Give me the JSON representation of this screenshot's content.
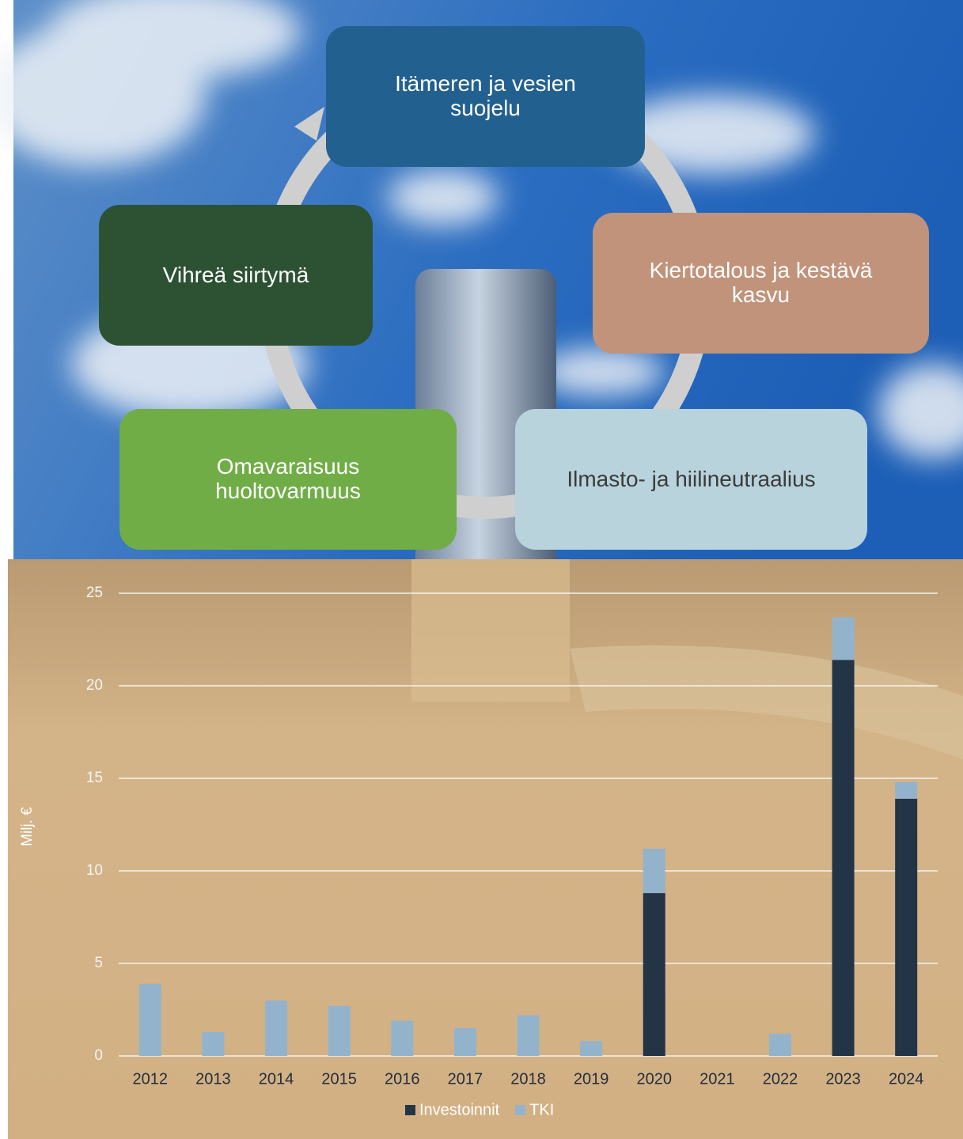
{
  "diagram": {
    "nodes": [
      {
        "label": "Itämeren ja vesien suojelu"
      },
      {
        "label": "Kiertotalous ja kestävä kasvu"
      },
      {
        "label": "Ilmasto- ja hiilineutraalius"
      },
      {
        "label": "Omavaraisuus huoltovarmuus"
      },
      {
        "label": "Vihreä siirtymä"
      }
    ]
  },
  "chart_data": {
    "type": "stacked-bar",
    "y_label": "Milj. €",
    "categories": [
      "2012",
      "2013",
      "2014",
      "2015",
      "2016",
      "2017",
      "2018",
      "2019",
      "2020",
      "2021",
      "2022",
      "2023",
      "2024"
    ],
    "series": [
      {
        "name": "Investoinnit",
        "color": "#243447",
        "values": [
          0,
          0,
          0,
          0,
          0,
          0,
          0,
          0,
          8.8,
          0,
          0,
          21.4,
          13.9
        ]
      },
      {
        "name": "TKI",
        "color": "#93b3cc",
        "values": [
          3.9,
          1.3,
          3.0,
          2.7,
          1.9,
          1.5,
          2.2,
          0.8,
          2.4,
          0,
          1.2,
          2.3,
          0.9
        ]
      }
    ],
    "ylim": [
      0,
      25
    ],
    "yticks": [
      0,
      5,
      10,
      15,
      20,
      25
    ],
    "grid": true,
    "legend": "bottom"
  }
}
